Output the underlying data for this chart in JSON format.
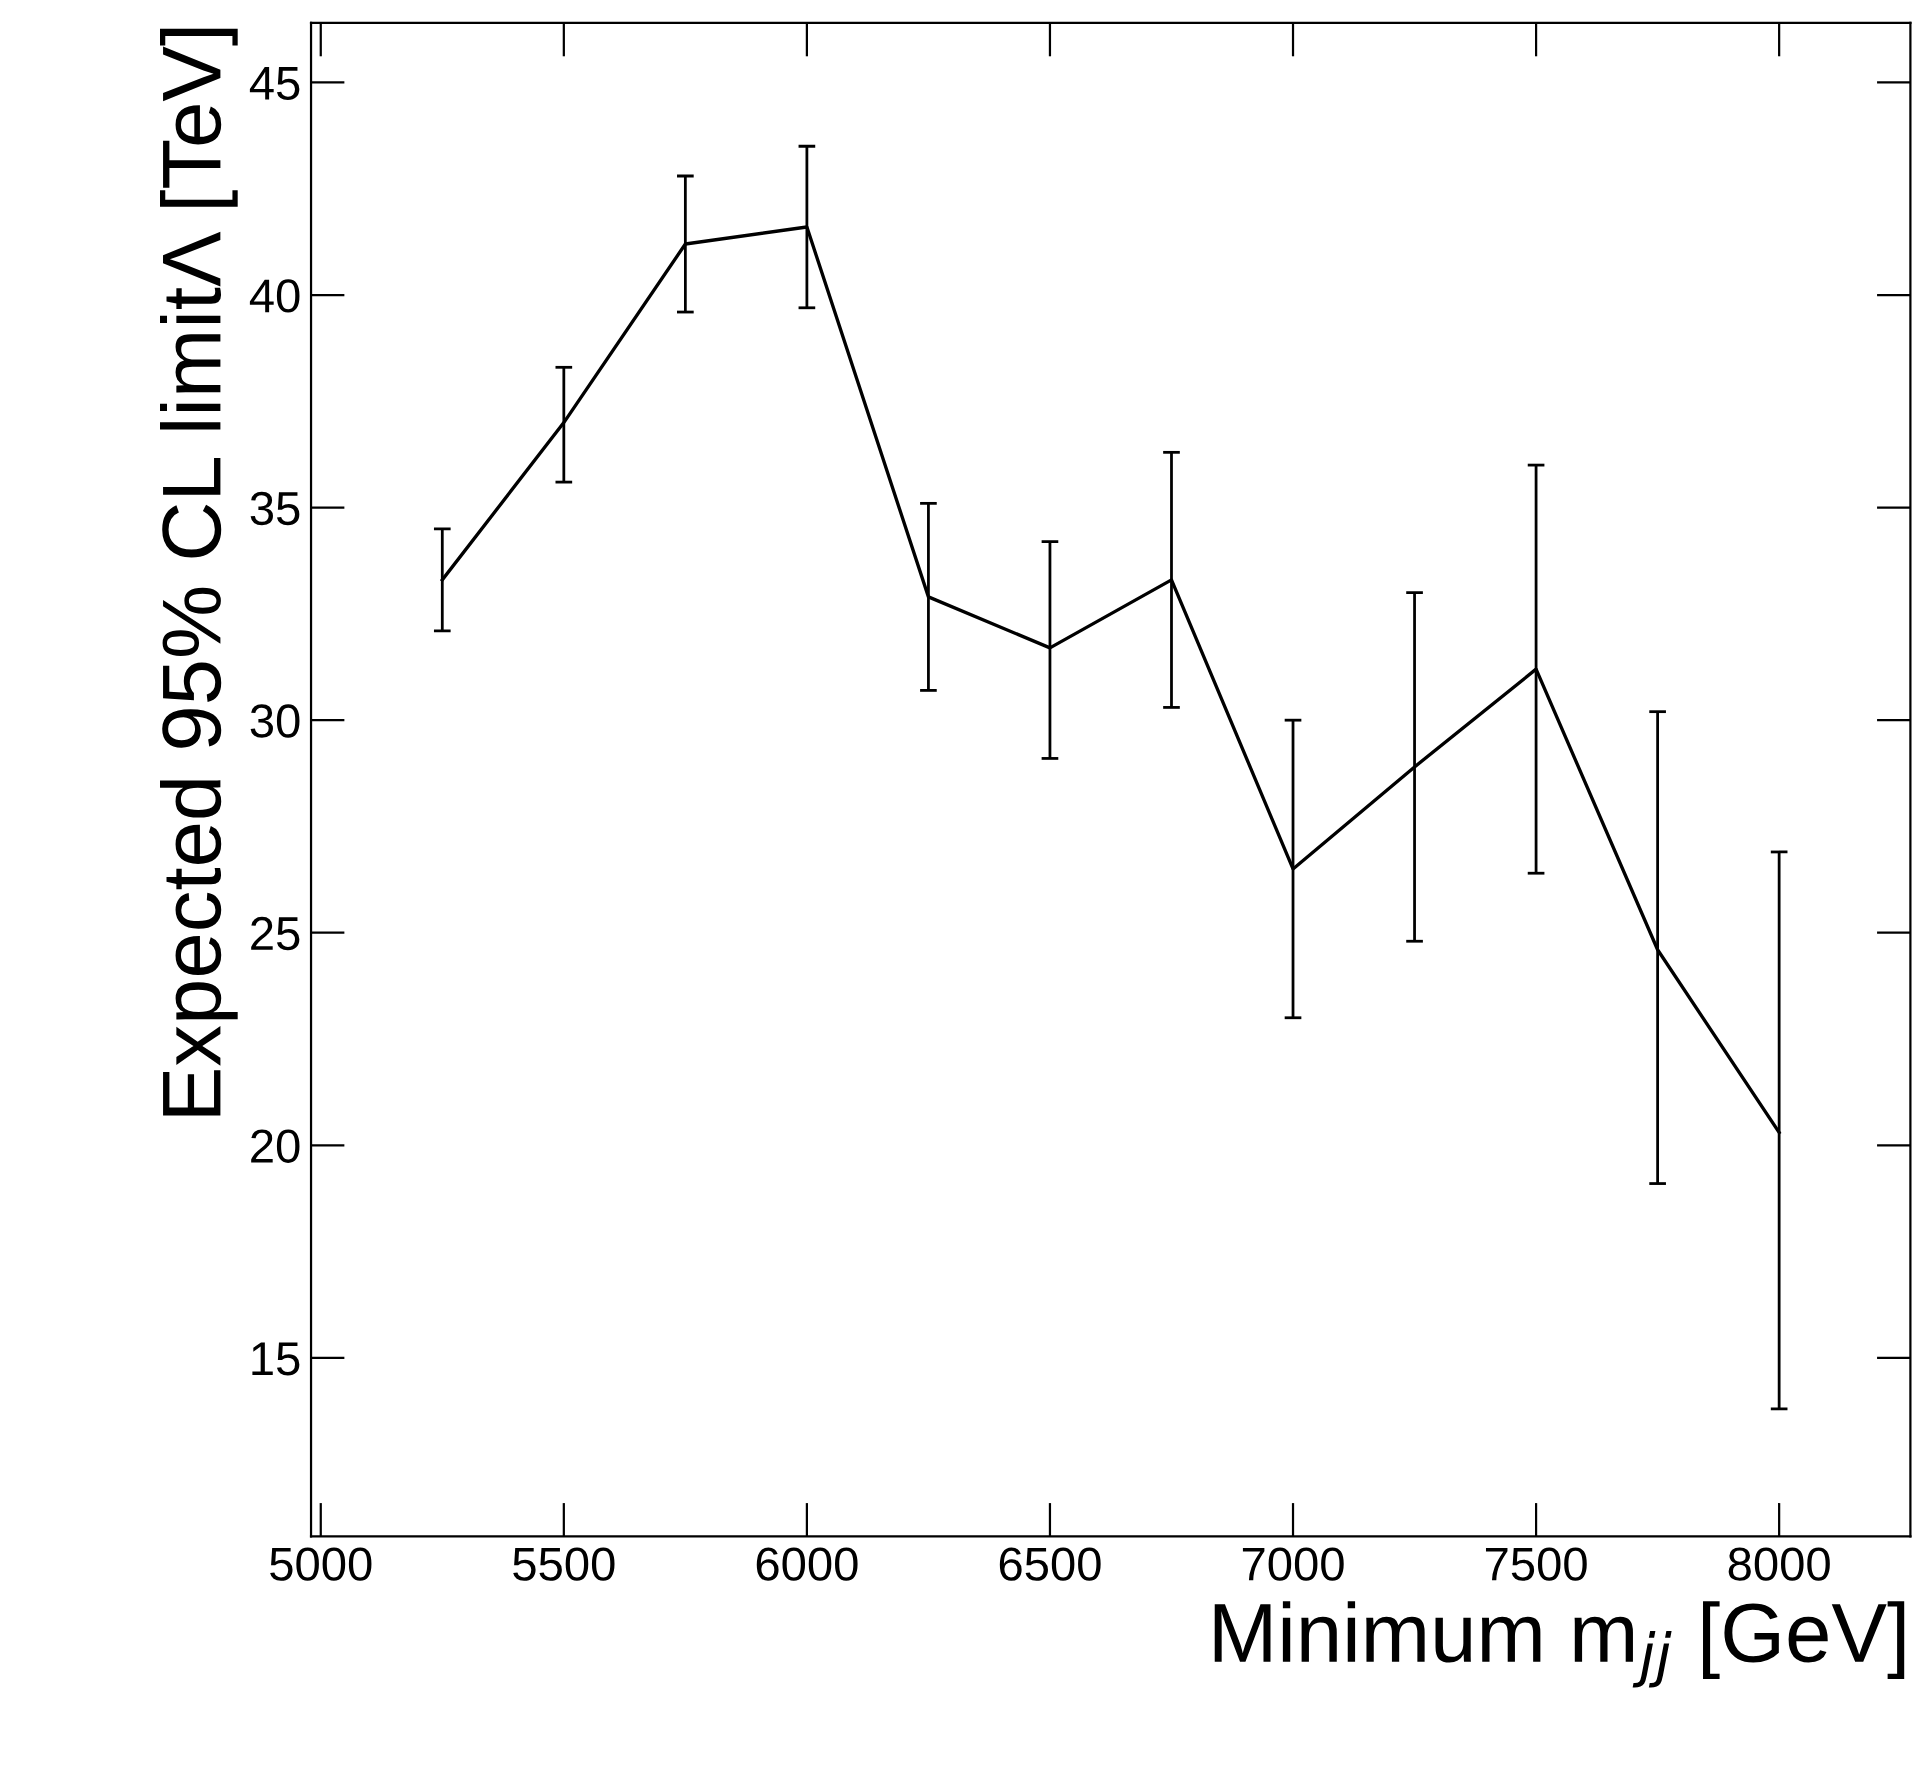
{
  "chart_data": {
    "type": "line",
    "xlabel": "Minimum m$_{jj}$ [GeV]",
    "ylabel": "Expected 95% CL limitΛ [TeV]",
    "x": [
      5250,
      5500,
      5750,
      6000,
      6250,
      6500,
      6750,
      7000,
      7250,
      7500,
      7750,
      8000
    ],
    "series": [
      {
        "color": "#000000",
        "values": [
          33.3,
          37.0,
          41.2,
          41.6,
          32.9,
          31.7,
          33.3,
          26.5,
          28.9,
          31.2,
          24.6,
          20.3
        ],
        "errors": [
          [
            32.1,
            34.5
          ],
          [
            35.6,
            38.3
          ],
          [
            39.6,
            42.8
          ],
          [
            39.7,
            43.5
          ],
          [
            30.7,
            35.1
          ],
          [
            29.1,
            34.2
          ],
          [
            30.3,
            36.3
          ],
          [
            23.0,
            30.0
          ],
          [
            24.8,
            33.0
          ],
          [
            26.4,
            36.0
          ],
          [
            19.1,
            30.2
          ],
          [
            13.8,
            26.9
          ]
        ]
      }
    ],
    "xlim": [
      4980,
      8270
    ],
    "ylim": [
      10.8,
      46.4
    ],
    "xticks": [
      5000,
      5500,
      6000,
      6500,
      7000,
      7500,
      8000
    ],
    "yticks": [
      15,
      20,
      25,
      30,
      35,
      40,
      45
    ],
    "grid": false,
    "legend": false,
    "marker": "none",
    "line_style": "solid"
  }
}
